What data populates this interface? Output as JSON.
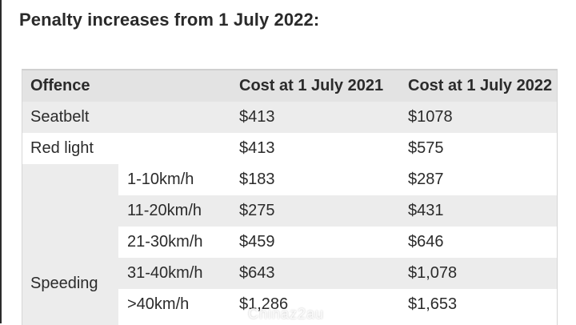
{
  "heading": "Penalty increases from 1 July 2022:",
  "table": {
    "headers": [
      "Offence",
      "Cost at 1 July 2021",
      "Cost at 1 July 2022"
    ],
    "rows": [
      {
        "offence": "Seatbelt",
        "sub": "",
        "cost_2021": "$413",
        "cost_2022": "$1078"
      },
      {
        "offence": "Red light",
        "sub": "",
        "cost_2021": "$413",
        "cost_2022": "$575"
      },
      {
        "offence": "",
        "sub": "1-10km/h",
        "cost_2021": "$183",
        "cost_2022": "$287"
      },
      {
        "offence": "",
        "sub": "11-20km/h",
        "cost_2021": "$275",
        "cost_2022": "$431"
      },
      {
        "offence": "",
        "sub": "21-30km/h",
        "cost_2021": "$459",
        "cost_2022": "$646"
      },
      {
        "offence": "",
        "sub": "31-40km/h",
        "cost_2021": "$643",
        "cost_2022": "$1,078"
      },
      {
        "offence": "",
        "sub": ">40km/h",
        "cost_2021": "$1,286",
        "cost_2022": "$1,653"
      }
    ],
    "speeding_label": "Speeding"
  },
  "watermark": "Chinaz2au",
  "colors": {
    "header_row": "#e3e3e3",
    "row_shaded": "#ececec",
    "row_plain": "#ffffff",
    "text": "#2b2b2b"
  }
}
